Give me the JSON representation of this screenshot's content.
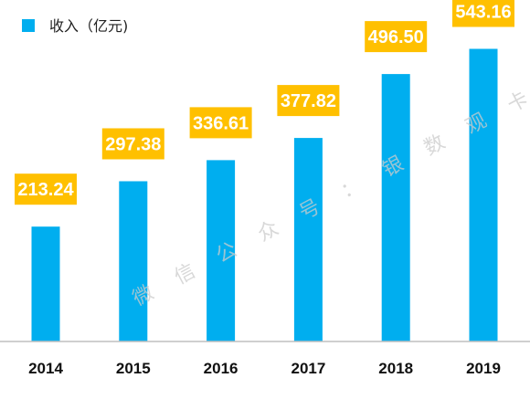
{
  "chart_data": {
    "type": "bar",
    "categories": [
      "2014",
      "2015",
      "2016",
      "2017",
      "2018",
      "2019"
    ],
    "series": [
      {
        "name": "收入（亿元)",
        "values": [
          213.24,
          297.38,
          336.61,
          377.82,
          496.5,
          543.16
        ]
      }
    ],
    "data_labels": [
      "213.24",
      "297.38",
      "336.61",
      "377.82",
      "496.50",
      "543.16"
    ],
    "ylim": [
      0,
      600
    ],
    "grid": false,
    "legend_position": "top-left",
    "colors": {
      "bar": "#00AEEF",
      "label_box": "#FFC000",
      "axis": "#BFBFBF",
      "watermark": "#CCCCCC"
    }
  },
  "watermark": {
    "chars": [
      "微",
      "信",
      "公",
      "众",
      "号",
      "：",
      "银",
      "数",
      "观",
      "卡"
    ]
  }
}
